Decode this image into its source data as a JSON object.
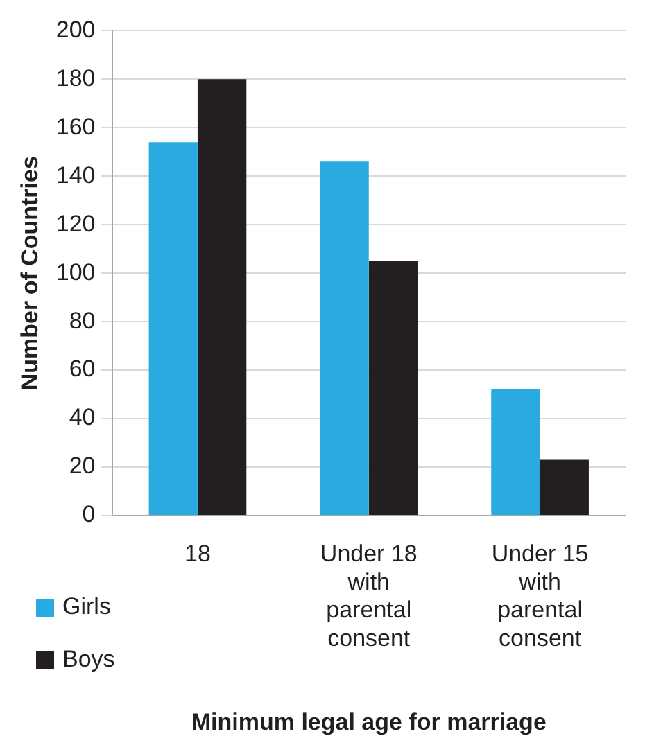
{
  "chart_data": {
    "type": "bar",
    "xlabel": "Minimum legal age for marriage",
    "ylabel": "Number of Countries",
    "categories": [
      "18",
      "Under 18 with parental consent",
      "Under 15 with parental consent"
    ],
    "series": [
      {
        "name": "Girls",
        "color": "#29abe2",
        "values": [
          154,
          146,
          52
        ]
      },
      {
        "name": "Boys",
        "color": "#231f20",
        "values": [
          180,
          105,
          23
        ]
      }
    ],
    "ylim": [
      0,
      200
    ],
    "yticks": [
      0,
      20,
      40,
      60,
      80,
      100,
      120,
      140,
      160,
      180,
      200
    ],
    "grid": "y",
    "legend": "bottom left"
  }
}
